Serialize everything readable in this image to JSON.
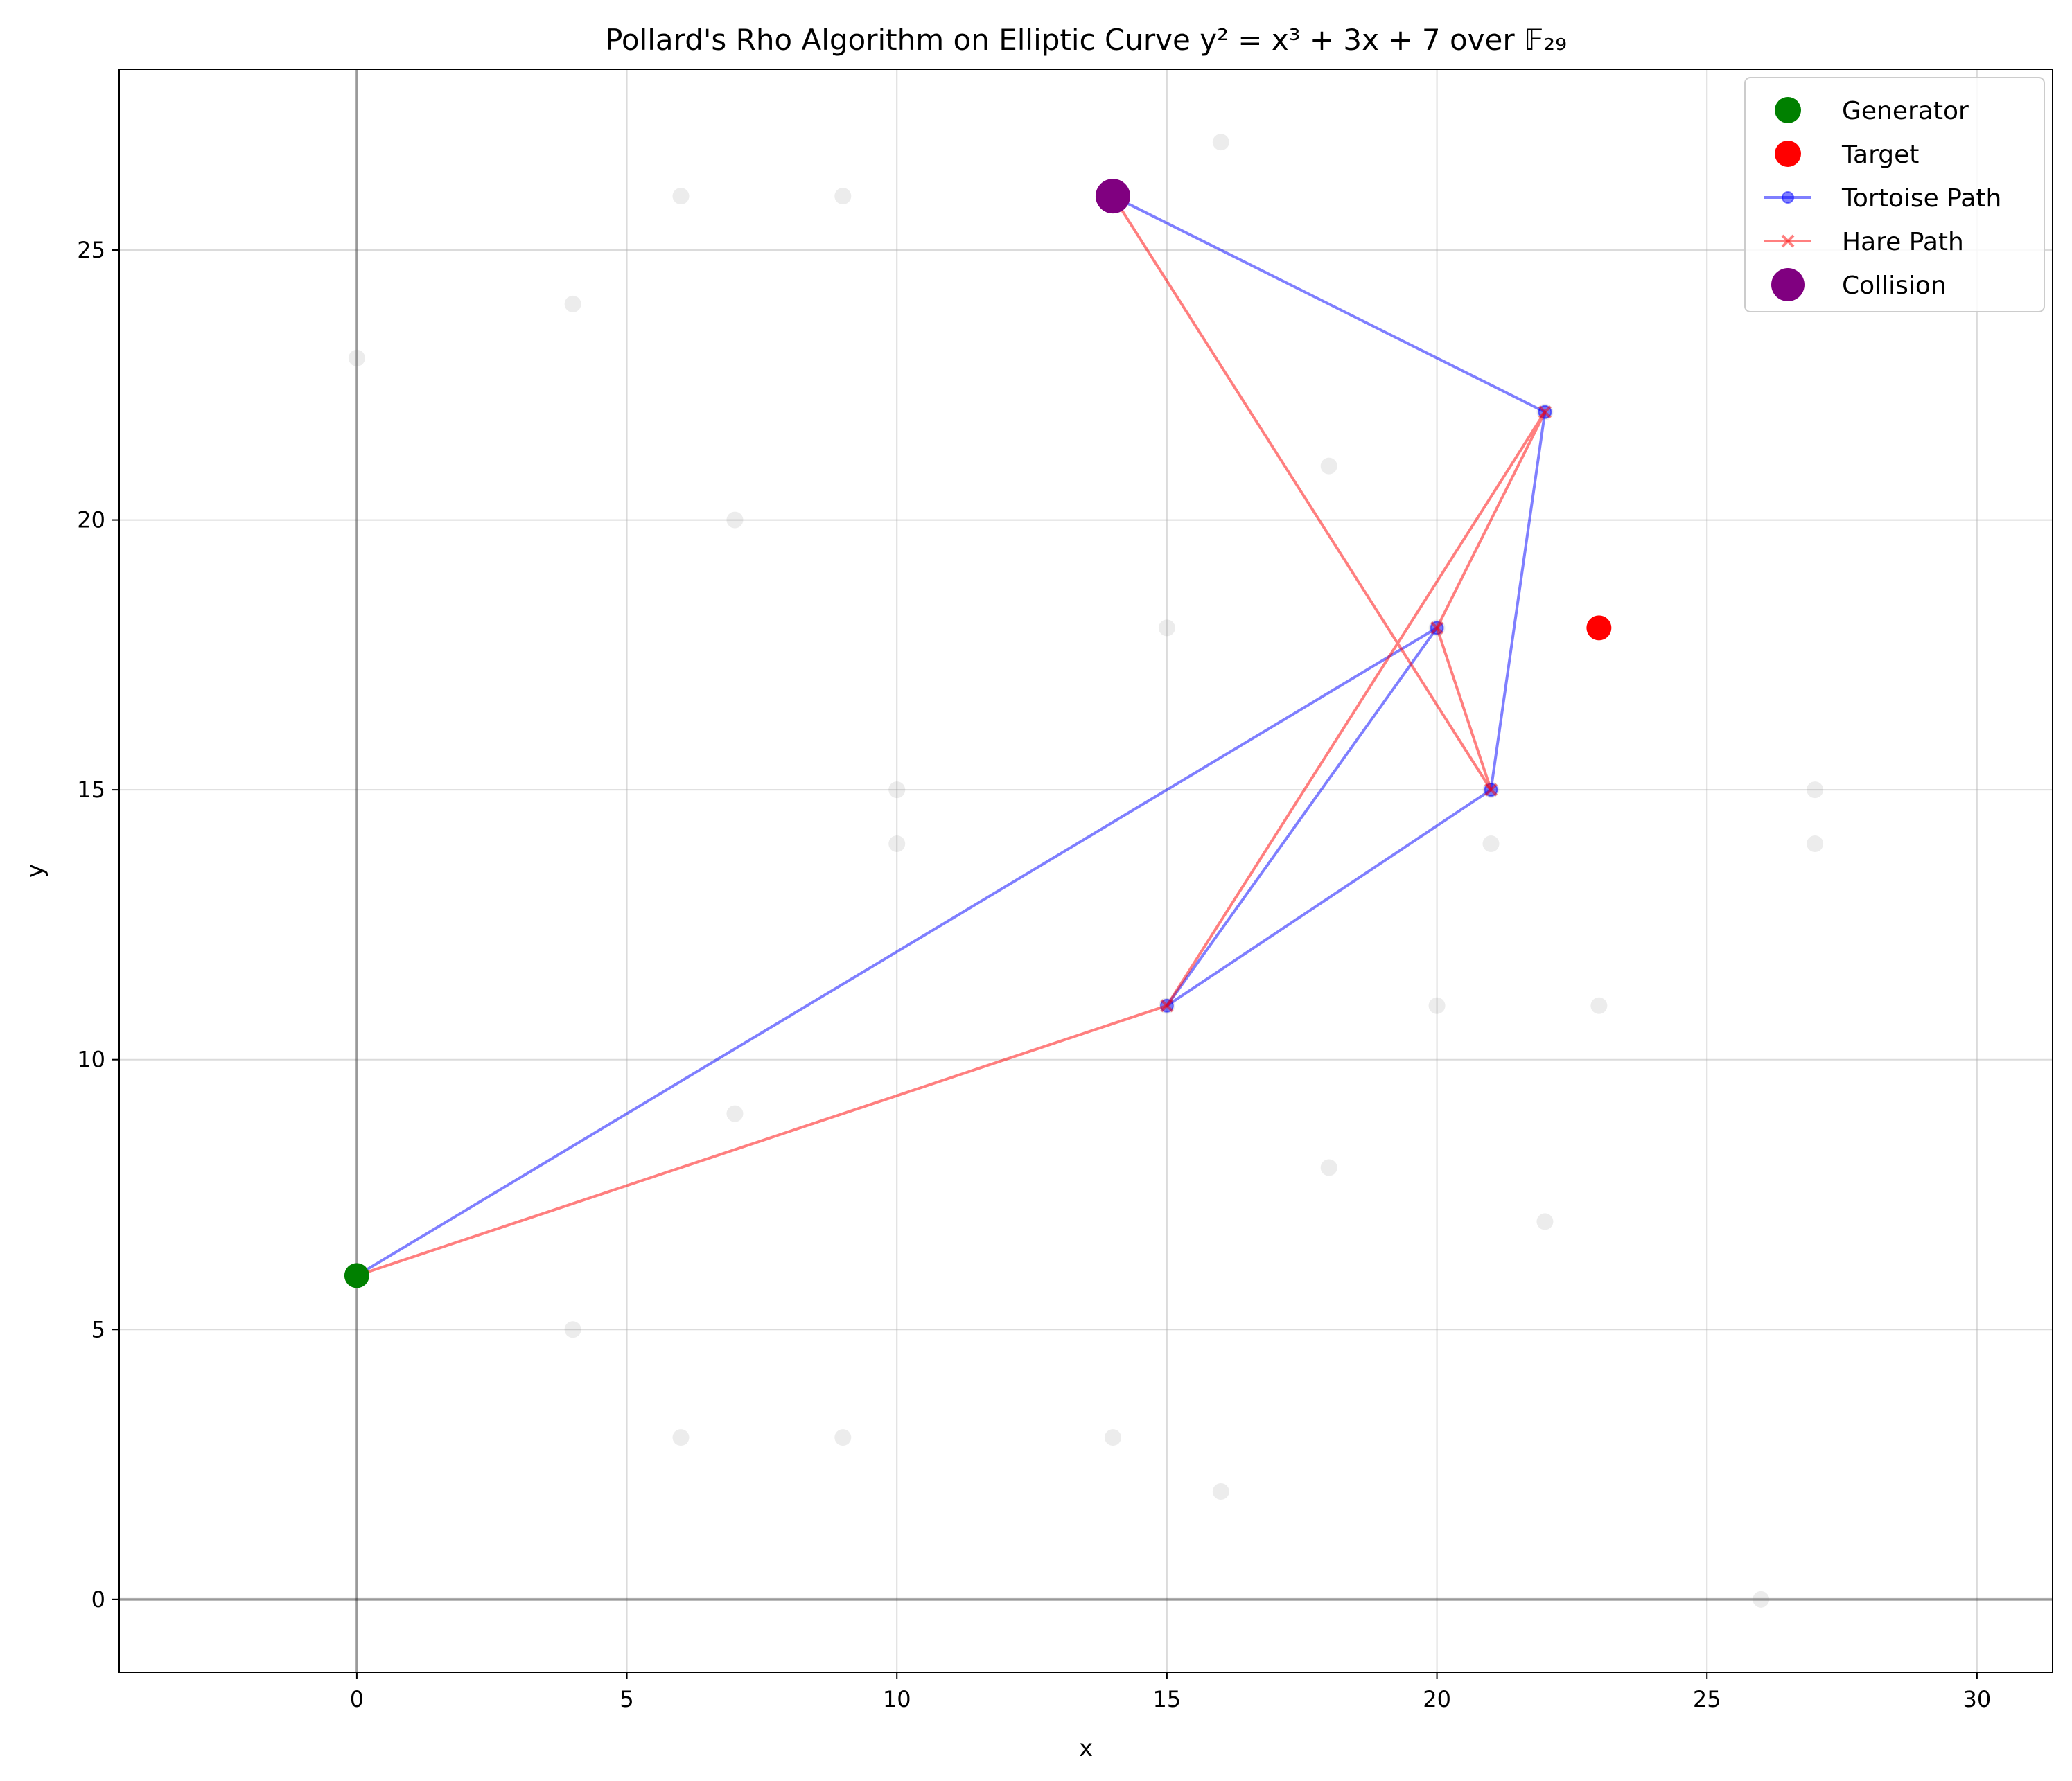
{
  "chart_data": {
    "type": "scatter",
    "title": "Pollard's Rho Algorithm on Elliptic Curve y² = x³ + 3x + 7 over 𝔽₂₉",
    "xlabel": "x",
    "ylabel": "y",
    "xlim": [
      -4.4,
      31.4
    ],
    "ylim": [
      -1.35,
      28.35
    ],
    "xticks": [
      0,
      5,
      10,
      15,
      20,
      25,
      30
    ],
    "yticks": [
      0,
      5,
      10,
      15,
      20,
      25
    ],
    "grid": true,
    "legend_position": "top-right",
    "curve_points": [
      [
        0,
        23
      ],
      [
        0,
        6
      ],
      [
        4,
        24
      ],
      [
        4,
        5
      ],
      [
        6,
        26
      ],
      [
        6,
        3
      ],
      [
        7,
        20
      ],
      [
        7,
        9
      ],
      [
        9,
        26
      ],
      [
        9,
        3
      ],
      [
        10,
        15
      ],
      [
        10,
        14
      ],
      [
        14,
        26
      ],
      [
        14,
        3
      ],
      [
        15,
        18
      ],
      [
        15,
        11
      ],
      [
        16,
        27
      ],
      [
        16,
        2
      ],
      [
        18,
        21
      ],
      [
        18,
        8
      ],
      [
        20,
        18
      ],
      [
        20,
        11
      ],
      [
        21,
        15
      ],
      [
        21,
        14
      ],
      [
        22,
        22
      ],
      [
        22,
        7
      ],
      [
        23,
        18
      ],
      [
        23,
        11
      ],
      [
        26,
        0
      ],
      [
        27,
        15
      ],
      [
        27,
        14
      ]
    ],
    "series": [
      {
        "name": "Generator",
        "kind": "point",
        "color": "#008000",
        "points": [
          [
            0,
            6
          ]
        ]
      },
      {
        "name": "Target",
        "kind": "point",
        "color": "#ff0000",
        "points": [
          [
            23,
            18
          ]
        ]
      },
      {
        "name": "Tortoise Path",
        "kind": "line",
        "marker": "o",
        "color": "#0000ff",
        "points": [
          [
            0,
            6
          ],
          [
            20,
            18
          ],
          [
            15,
            11
          ],
          [
            21,
            15
          ],
          [
            22,
            22
          ],
          [
            14,
            26
          ]
        ]
      },
      {
        "name": "Hare Path",
        "kind": "line",
        "marker": "x",
        "color": "#ff0000",
        "points": [
          [
            0,
            6
          ],
          [
            15,
            11
          ],
          [
            22,
            22
          ],
          [
            20,
            18
          ],
          [
            21,
            15
          ],
          [
            14,
            26
          ]
        ]
      },
      {
        "name": "Collision",
        "kind": "point",
        "color": "#800080",
        "points": [
          [
            14,
            26
          ]
        ]
      }
    ]
  }
}
